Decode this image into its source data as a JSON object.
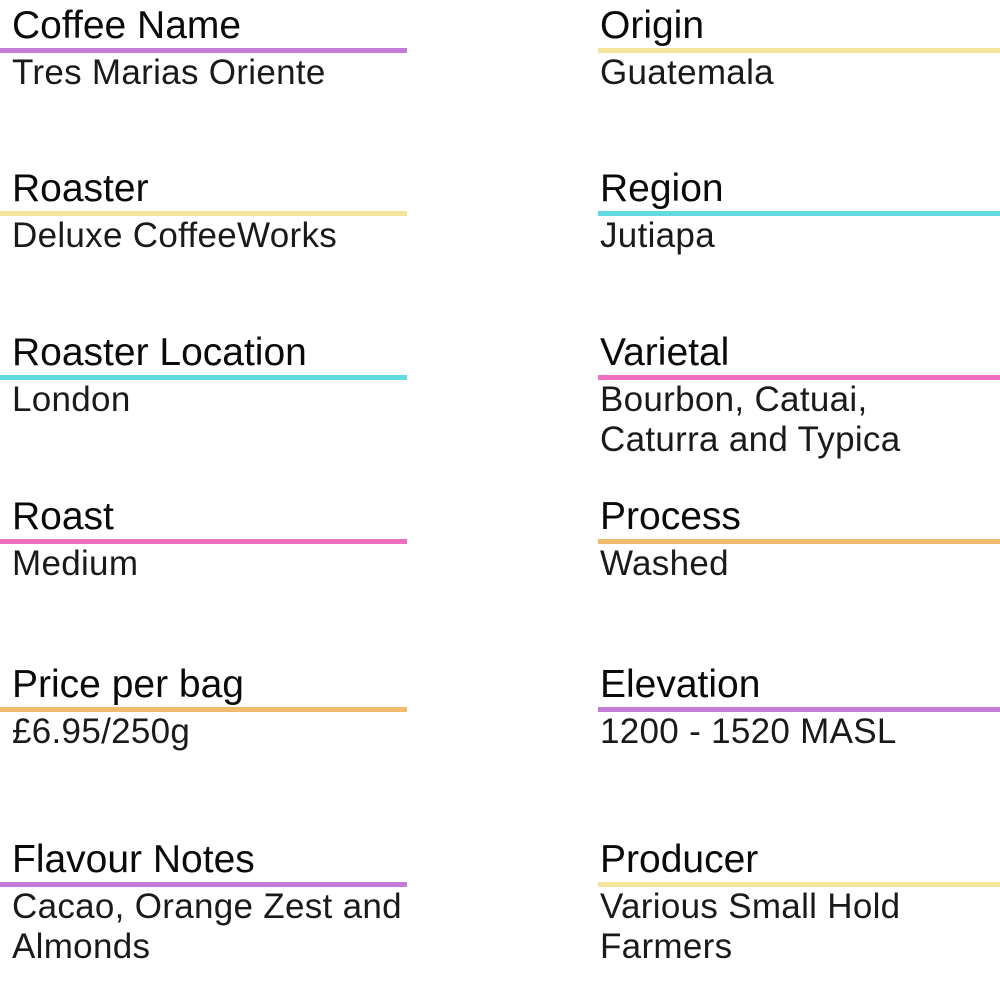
{
  "colors": {
    "purple": "#c67ad8",
    "yellow": "#f4e59c",
    "cyan": "#63d9e0",
    "pink": "#ee6fbf",
    "orange": "#f2bb6c"
  },
  "left": [
    {
      "label": "Coffee Name",
      "value": "Tres Marias Oriente",
      "color": "#c67ad8"
    },
    {
      "label": "Roaster",
      "value": "Deluxe CoffeeWorks",
      "color": "#f4e59c"
    },
    {
      "label": "Roaster Location",
      "value": "London",
      "color": "#63d9e0"
    },
    {
      "label": "Roast",
      "value": "Medium",
      "color": "#ee6fbf"
    },
    {
      "label": "Price per bag",
      "value": "£6.95/250g",
      "color": "#f2bb6c"
    },
    {
      "label": "Flavour Notes",
      "value": "Cacao, Orange Zest and\nAlmonds",
      "color": "#c67ad8"
    }
  ],
  "right": [
    {
      "label": "Origin",
      "value": "Guatemala",
      "color": "#f4e59c"
    },
    {
      "label": "Region",
      "value": "Jutiapa",
      "color": "#63d9e0"
    },
    {
      "label": "Varietal",
      "value": "Bourbon, Catuai,\nCaturra and Typica",
      "color": "#ee6fbf"
    },
    {
      "label": "Process",
      "value": "Washed",
      "color": "#f2bb6c"
    },
    {
      "label": "Elevation",
      "value": "1200 - 1520 MASL",
      "color": "#c67ad8"
    },
    {
      "label": "Producer",
      "value": "Various Small Hold\nFarmers",
      "color": "#f4e59c"
    }
  ]
}
